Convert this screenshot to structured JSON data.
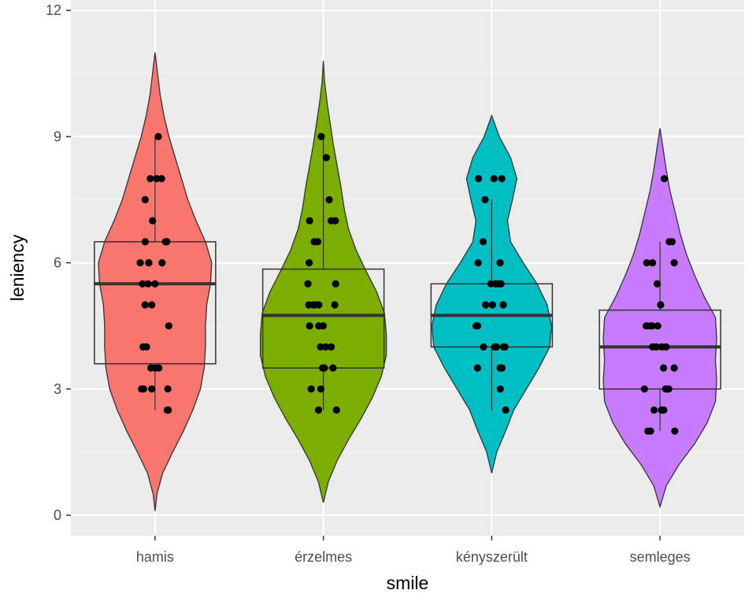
{
  "chart_data": {
    "type": "violin",
    "xlabel": "smile",
    "ylabel": "leniency",
    "ylim": [
      -0.5,
      12
    ],
    "yticks": [
      0,
      3,
      6,
      9,
      12
    ],
    "grid": true,
    "categories": [
      "hamis",
      "érzelmes",
      "kényszerült",
      "semleges"
    ],
    "colors": [
      "#F8766D",
      "#7CAE00",
      "#00BFC4",
      "#C77CFF"
    ],
    "series": [
      {
        "category": "hamis",
        "violin": {
          "y": [
            0.1,
            0.5,
            1.0,
            1.5,
            2.0,
            2.5,
            3.0,
            3.5,
            4.0,
            4.5,
            5.0,
            5.5,
            6.0,
            6.5,
            7.0,
            7.5,
            8.0,
            8.5,
            9.0,
            9.5,
            10.0,
            10.5,
            11.0
          ],
          "width": [
            0.0,
            0.03,
            0.12,
            0.28,
            0.45,
            0.6,
            0.72,
            0.78,
            0.8,
            0.8,
            0.82,
            0.88,
            0.9,
            0.8,
            0.65,
            0.52,
            0.42,
            0.32,
            0.22,
            0.14,
            0.08,
            0.04,
            0.0
          ]
        },
        "box": {
          "lower": 3.6,
          "q1": 3.6,
          "median": 5.5,
          "q3": 6.5,
          "upper": 6.5,
          "whisker_low": 2.5,
          "whisker_high": 9.0
        },
        "points": [
          2.5,
          2.5,
          3.0,
          3.0,
          3.0,
          3.0,
          3.5,
          3.5,
          3.5,
          4.0,
          4.0,
          4.5,
          5.0,
          5.0,
          5.5,
          5.5,
          5.5,
          6.0,
          6.0,
          6.0,
          6.0,
          6.5,
          6.5,
          6.5,
          7.0,
          7.5,
          8.0,
          8.0,
          8.0,
          9.0
        ]
      },
      {
        "category": "érzelmes",
        "violin": {
          "y": [
            0.3,
            0.8,
            1.3,
            1.8,
            2.3,
            2.8,
            3.3,
            3.8,
            4.3,
            4.8,
            5.3,
            5.8,
            6.3,
            6.8,
            7.3,
            7.8,
            8.3,
            8.8,
            9.3,
            9.8,
            10.3,
            10.8
          ],
          "width": [
            0.0,
            0.08,
            0.22,
            0.4,
            0.6,
            0.78,
            0.92,
            1.0,
            1.0,
            0.97,
            0.85,
            0.68,
            0.52,
            0.4,
            0.33,
            0.28,
            0.22,
            0.16,
            0.11,
            0.06,
            0.02,
            0.0
          ]
        },
        "box": {
          "q1": 3.5,
          "median": 4.75,
          "q3": 5.85,
          "whisker_low": 2.5,
          "whisker_high": 9.0
        },
        "points": [
          2.5,
          2.5,
          3.0,
          3.0,
          3.5,
          3.5,
          3.5,
          4.0,
          4.0,
          4.0,
          4.5,
          4.5,
          4.5,
          5.0,
          5.0,
          5.0,
          5.0,
          5.0,
          5.5,
          5.5,
          6.0,
          6.5,
          6.5,
          7.0,
          7.0,
          7.0,
          7.5,
          8.5,
          9.0
        ]
      },
      {
        "category": "kényszerült",
        "violin": {
          "y": [
            1.0,
            1.5,
            2.0,
            2.5,
            3.0,
            3.5,
            4.0,
            4.5,
            5.0,
            5.5,
            6.0,
            6.5,
            7.0,
            7.5,
            8.0,
            8.5,
            9.0,
            9.5
          ],
          "width": [
            0.0,
            0.08,
            0.22,
            0.35,
            0.55,
            0.75,
            0.92,
            0.95,
            0.88,
            0.72,
            0.5,
            0.3,
            0.25,
            0.33,
            0.4,
            0.3,
            0.12,
            0.0
          ]
        },
        "box": {
          "q1": 4.0,
          "median": 4.75,
          "q3": 5.5,
          "whisker_low": 2.5,
          "whisker_high": 7.5
        },
        "points": [
          2.5,
          3.0,
          3.5,
          3.5,
          3.5,
          4.0,
          4.0,
          4.0,
          4.0,
          4.0,
          4.5,
          4.5,
          5.0,
          5.0,
          5.0,
          5.5,
          5.5,
          5.5,
          5.5,
          5.5,
          6.0,
          6.0,
          6.5,
          7.5,
          8.0,
          8.0,
          8.0
        ]
      },
      {
        "category": "semleges",
        "violin": {
          "y": [
            0.2,
            0.7,
            1.2,
            1.7,
            2.2,
            2.7,
            3.2,
            3.7,
            4.2,
            4.7,
            5.2,
            5.7,
            6.2,
            6.7,
            7.2,
            7.7,
            8.2,
            8.7,
            9.2
          ],
          "width": [
            0.0,
            0.1,
            0.3,
            0.55,
            0.75,
            0.88,
            0.9,
            0.88,
            0.9,
            0.88,
            0.7,
            0.55,
            0.42,
            0.32,
            0.24,
            0.16,
            0.1,
            0.05,
            0.0
          ]
        },
        "box": {
          "q1": 3.0,
          "median": 4.0,
          "q3": 4.875,
          "whisker_low": 2.0,
          "whisker_high": 6.5
        },
        "points": [
          2.0,
          2.0,
          2.0,
          2.5,
          2.5,
          2.5,
          3.0,
          3.0,
          3.0,
          3.0,
          3.5,
          3.5,
          4.0,
          4.0,
          4.0,
          4.0,
          4.0,
          4.5,
          4.5,
          4.5,
          4.5,
          4.5,
          4.5,
          5.0,
          5.5,
          6.0,
          6.0,
          6.0,
          6.5,
          6.5,
          8.0
        ]
      }
    ]
  }
}
